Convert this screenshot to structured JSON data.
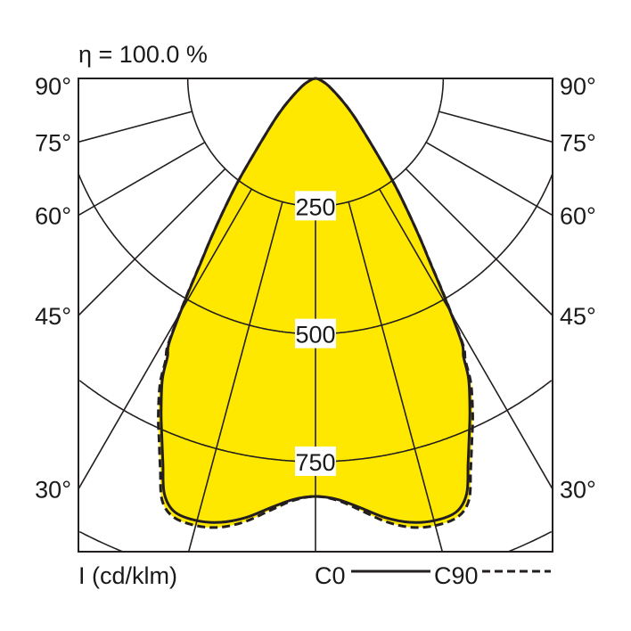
{
  "chart_data": {
    "type": "polar-line",
    "title": "η = 100.0 %",
    "unit_label": "I (cd/klm)",
    "radial_ticks": [
      250,
      500,
      750
    ],
    "radial_grid": [
      250,
      500,
      750,
      1000
    ],
    "angle_grid_deg": [
      0,
      15,
      30,
      45,
      60,
      75,
      90
    ],
    "angle_labels": [
      "90°",
      "75°",
      "60°",
      "45°",
      "30°"
    ],
    "angle_label_values": [
      90,
      75,
      60,
      45,
      30
    ],
    "fill_color": "#FFE800",
    "line_color": "#231f20",
    "grid": true,
    "legend_position": "bottom-right",
    "series": [
      {
        "name": "C0",
        "style": "solid",
        "angles": [
          0,
          3,
          6,
          9,
          12,
          15,
          18,
          20,
          21.6,
          23.5,
          25,
          27,
          28,
          29,
          30.5,
          32,
          33.2,
          35,
          37,
          40,
          45,
          50,
          60,
          70,
          80,
          90
        ],
        "values": [
          818,
          825,
          845,
          870,
          888,
          896,
          892,
          865,
          811,
          755,
          715,
          660,
          617,
          590,
          500,
          420,
          373,
          310,
          250,
          175,
          110,
          70,
          30,
          12,
          4,
          0
        ]
      },
      {
        "name": "C90",
        "style": "dashed",
        "angles": [
          0,
          3,
          6,
          9,
          12,
          15,
          18,
          20,
          21.6,
          23.5,
          25,
          27,
          28,
          29,
          30.5,
          32,
          33.2,
          35,
          37,
          40,
          45,
          50,
          60,
          70,
          80,
          90
        ],
        "values": [
          818,
          827,
          850,
          878,
          898,
          906,
          902,
          878,
          825,
          768,
          728,
          670,
          625,
          595,
          503,
          422,
          374,
          310,
          250,
          175,
          110,
          70,
          30,
          12,
          4,
          0
        ]
      }
    ]
  }
}
